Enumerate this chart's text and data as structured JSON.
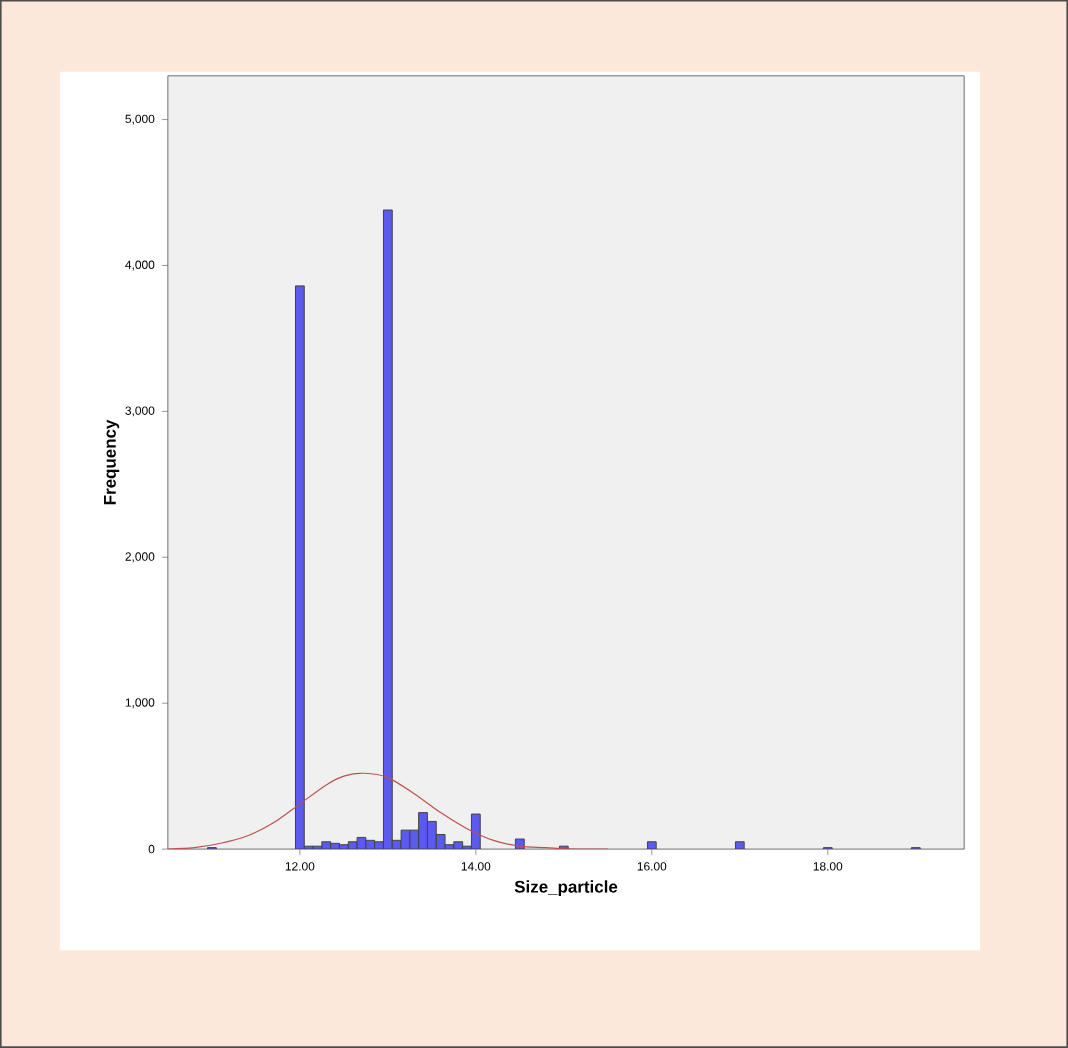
{
  "chart_data": {
    "type": "histogram",
    "xlabel": "Size_particle",
    "ylabel": "Frequency",
    "xlim": [
      10.5,
      19.55
    ],
    "ylim": [
      0,
      5300
    ],
    "xticks": [
      {
        "value": 12,
        "label": "12.00"
      },
      {
        "value": 14,
        "label": "14.00"
      },
      {
        "value": 16,
        "label": "16.00"
      },
      {
        "value": 18,
        "label": "18.00"
      }
    ],
    "yticks": [
      {
        "value": 0,
        "label": "0"
      },
      {
        "value": 1000,
        "label": "1,000"
      },
      {
        "value": 2000,
        "label": "2,000"
      },
      {
        "value": 3000,
        "label": "3,000"
      },
      {
        "value": 4000,
        "label": "4,000"
      },
      {
        "value": 5000,
        "label": "5,000"
      }
    ],
    "series": [
      {
        "color": "#5a5af0",
        "bins": [
          10.95,
          11.05,
          11.95,
          12.05,
          12.15,
          12.25,
          12.35,
          12.45,
          12.55,
          12.65,
          12.75,
          12.85,
          12.95,
          13.05,
          13.15,
          13.25,
          13.35,
          13.45,
          13.55,
          13.65,
          13.75,
          13.85,
          13.95,
          14.05,
          14.45,
          14.55,
          14.95,
          15.05,
          15.95,
          16.05,
          16.95,
          17.05,
          17.95,
          18.05,
          18.95,
          19.05
        ],
        "values": [
          10,
          0,
          3860,
          20,
          20,
          50,
          40,
          30,
          50,
          80,
          60,
          50,
          4380,
          60,
          130,
          130,
          250,
          190,
          100,
          30,
          50,
          20,
          240,
          0,
          70,
          0,
          20,
          0,
          50,
          0,
          50,
          0,
          10,
          0,
          10
        ]
      },
      {
        "type": "line",
        "color": "#c0504d",
        "x": [
          10.5,
          10.8,
          11.1,
          11.4,
          11.7,
          12.0,
          12.3,
          12.5,
          12.73,
          13.0,
          13.3,
          13.6,
          13.9,
          14.2,
          14.5,
          14.8,
          15.1,
          15.5
        ],
        "values": [
          0,
          10,
          40,
          90,
          180,
          310,
          440,
          500,
          520,
          490,
          380,
          250,
          140,
          60,
          20,
          10,
          0,
          0
        ]
      }
    ]
  }
}
